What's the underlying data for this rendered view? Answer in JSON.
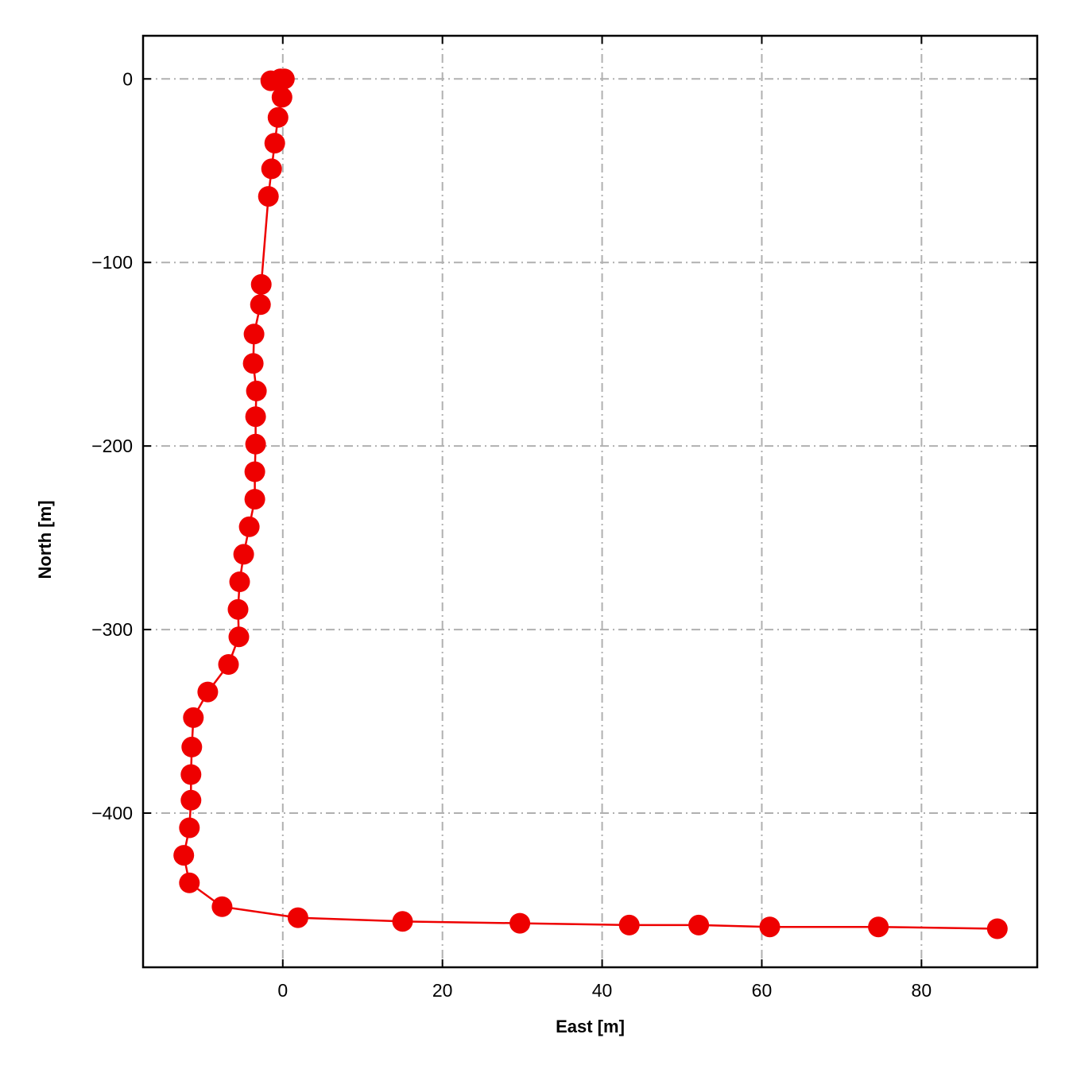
{
  "chart_data": {
    "type": "line",
    "title": "",
    "xlabel": "East [m]",
    "ylabel": "North [m]",
    "xlim": [
      -17.5,
      94.5
    ],
    "ylim": [
      -484,
      23.5
    ],
    "xticks": [
      0,
      20,
      40,
      60,
      80
    ],
    "yticks": [
      0,
      -100,
      -200,
      -300,
      -400
    ],
    "xtick_labels": [
      "0",
      "20",
      "40",
      "60",
      "80"
    ],
    "ytick_labels": [
      "0",
      "−100",
      "−200",
      "−300",
      "−400"
    ],
    "grid": true,
    "legend": "none",
    "series": [
      {
        "color": "#ee0000",
        "marker": "circle",
        "x": [
          0.2,
          -0.3,
          -1.5,
          -0.5,
          -0.1,
          -0.6,
          -1.0,
          -1.4,
          -1.8,
          -2.7,
          -2.8,
          -3.6,
          -3.7,
          -3.3,
          -3.4,
          -3.4,
          -3.5,
          -3.5,
          -4.2,
          -4.9,
          -5.4,
          -5.6,
          -5.5,
          -6.8,
          -9.4,
          -11.2,
          -11.4,
          -11.5,
          -11.5,
          -11.7,
          -12.4,
          -11.7,
          -7.6,
          1.9,
          15.0,
          29.7,
          43.4,
          52.1,
          61.0,
          74.6,
          89.5
        ],
        "y": [
          0,
          0,
          -1,
          -1,
          -10,
          -21,
          -35,
          -49,
          -64,
          -112,
          -123,
          -139,
          -155,
          -170,
          -184,
          -199,
          -214,
          -229,
          -244,
          -259,
          -274,
          -289,
          -304,
          -319,
          -334,
          -348,
          -364,
          -379,
          -393,
          -408,
          -423,
          -438,
          -451,
          -457,
          -459,
          -460,
          -461,
          -461,
          -462,
          -462,
          -463
        ]
      }
    ]
  }
}
